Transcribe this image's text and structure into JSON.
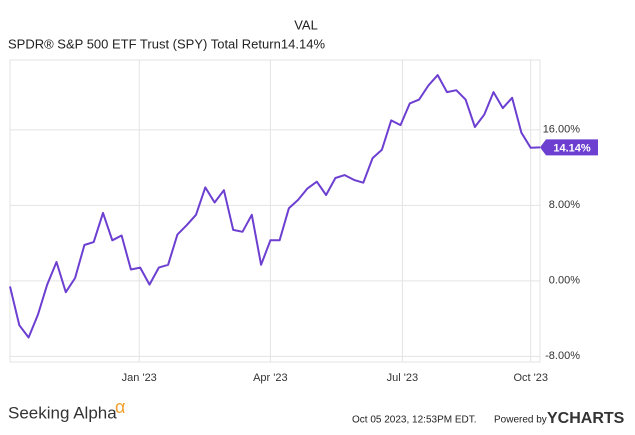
{
  "chart_data": {
    "type": "line",
    "legend_header": "VAL",
    "series": [
      {
        "name": "SPDR® S&P 500 ETF Trust (SPY) Total Return",
        "color": "#6c3fd1",
        "last_label": "14.14%",
        "values": [
          -0.6,
          -4.7,
          -6.0,
          -3.6,
          -0.4,
          2.0,
          -1.2,
          0.3,
          3.8,
          4.1,
          7.2,
          4.3,
          4.8,
          1.2,
          1.4,
          -0.4,
          1.4,
          1.7,
          4.9,
          5.9,
          7.0,
          9.9,
          8.3,
          9.6,
          5.4,
          5.2,
          7.0,
          1.7,
          4.3,
          4.3,
          7.7,
          8.6,
          9.8,
          10.5,
          9.1,
          10.9,
          11.2,
          10.7,
          10.4,
          13.0,
          13.9,
          17.0,
          16.5,
          18.8,
          19.2,
          20.7,
          21.8,
          20.0,
          20.2,
          19.2,
          16.3,
          17.6,
          20.0,
          18.3,
          19.4,
          15.7,
          14.1,
          14.14
        ]
      }
    ],
    "xlim": [
      0,
      57
    ],
    "xticks": [
      {
        "value": 13.9,
        "label": "Jan '23"
      },
      {
        "value": 28.0,
        "label": "Apr '23"
      },
      {
        "value": 42.2,
        "label": "Jul '23"
      },
      {
        "value": 56.0,
        "label": "Oct '23"
      }
    ],
    "ylim": [
      -8.6,
      23.4
    ],
    "yticks": [
      {
        "value": 16,
        "label": "16.00%"
      },
      {
        "value": 8,
        "label": "8.00%"
      },
      {
        "value": 0,
        "label": "0.00%"
      },
      {
        "value": -8,
        "label": "-8.00%"
      }
    ],
    "grid": true
  },
  "footer": {
    "brand": "Seeking Alpha",
    "brand_mark": "α",
    "timestamp": "Oct 05 2023, 12:53PM EDT.",
    "powered_by": "Powered by",
    "provider": "YCHARTS"
  }
}
